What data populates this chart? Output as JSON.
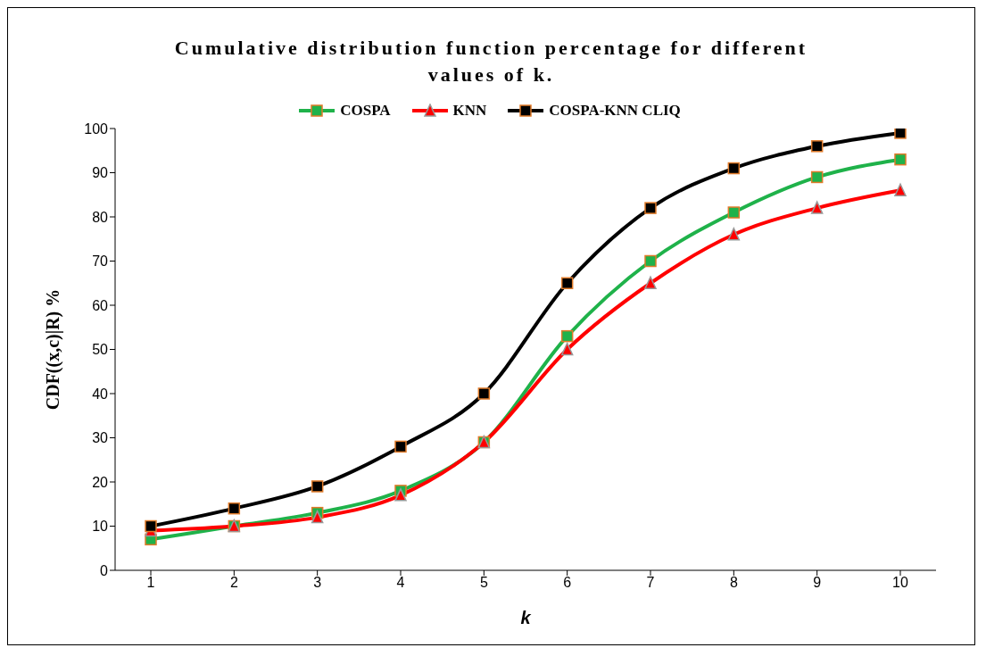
{
  "chart_data": {
    "type": "line",
    "title": "Cumulative distribution function percentage for different values of k.",
    "xlabel": "k",
    "ylabel": "CDF((x,c)|R) %",
    "categories": [
      "1",
      "2",
      "3",
      "4",
      "5",
      "6",
      "7",
      "8",
      "9",
      "10"
    ],
    "series": [
      {
        "name": "COSPA",
        "color": "#1fb24a",
        "marker": "square",
        "values": [
          7,
          10,
          13,
          18,
          29,
          53,
          70,
          81,
          89,
          93
        ]
      },
      {
        "name": "KNN",
        "color": "#ff0000",
        "marker": "triangle",
        "values": [
          9,
          10,
          12,
          17,
          29,
          50,
          65,
          76,
          82,
          86
        ]
      },
      {
        "name": "COSPA-KNN CLIQ",
        "color": "#000000",
        "marker": "square",
        "values": [
          10,
          14,
          19,
          28,
          40,
          65,
          82,
          91,
          96,
          99
        ]
      }
    ],
    "ylim": [
      0,
      100
    ],
    "yticks": [
      0,
      10,
      20,
      30,
      40,
      50,
      60,
      70,
      80,
      90,
      100
    ],
    "grid": false,
    "legend": "top",
    "line_style": "solid"
  }
}
